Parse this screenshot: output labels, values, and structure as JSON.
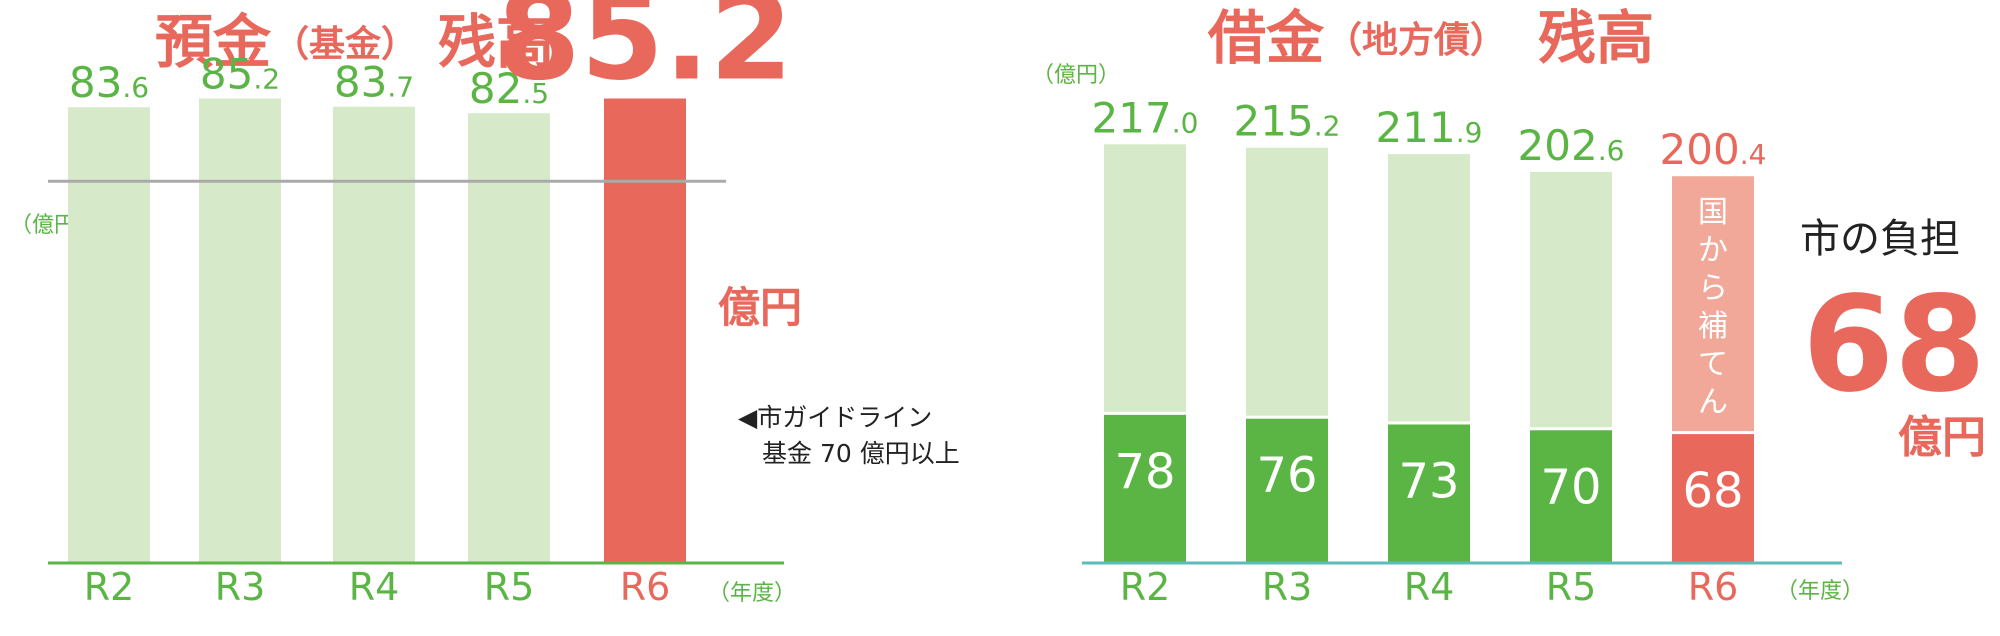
{
  "chart_data": [
    {
      "type": "bar",
      "title_main": "預金",
      "title_paren": "（基金）",
      "title_end": "残高",
      "ylabel": "（億円）",
      "xunit": "（年度）",
      "categories": [
        "R2",
        "R3",
        "R4",
        "R5",
        "R6"
      ],
      "values": [
        83.6,
        85.2,
        83.7,
        82.5,
        85.2
      ],
      "value_labels": [
        {
          "int": "83",
          "dec": ".6"
        },
        {
          "int": "85",
          "dec": ".2"
        },
        {
          "int": "83",
          "dec": ".7"
        },
        {
          "int": "82",
          "dec": ".5"
        },
        {
          "int": "85.2",
          "dec": ""
        }
      ],
      "highlight_unit": "億円",
      "ylim": [
        0,
        100
      ],
      "guideline": {
        "value": 70,
        "label_line1": "◀市ガイドライン",
        "label_line2": "基金 70 億円以上"
      },
      "colors": {
        "bar": "#d6eac9",
        "highlight": "#e8685c",
        "axis": "#5ab544",
        "guideline": "#aaaaaa"
      }
    },
    {
      "type": "stacked_bar",
      "title_main": "借金",
      "title_paren": "（地方債）",
      "title_end": "残高",
      "ylabel": "（億円）",
      "xunit": "（年度）",
      "categories": [
        "R2",
        "R3",
        "R4",
        "R5",
        "R6"
      ],
      "totals": [
        217.0,
        215.2,
        211.9,
        202.6,
        200.4
      ],
      "total_labels": [
        {
          "int": "217",
          "dec": ".0"
        },
        {
          "int": "215",
          "dec": ".2"
        },
        {
          "int": "211",
          "dec": ".9"
        },
        {
          "int": "202",
          "dec": ".6"
        },
        {
          "int": "200",
          "dec": ".4"
        }
      ],
      "city_burden": [
        78,
        76,
        73,
        70,
        68
      ],
      "city_burden_labels": [
        "78",
        "76",
        "73",
        "70",
        "68"
      ],
      "national_label": "国から補てん",
      "callout_label": "市の負担",
      "callout_value": "68",
      "callout_unit": "億円",
      "ylim": [
        0,
        240
      ],
      "colors": {
        "light": "#d6eac9",
        "dark": "#5ab544",
        "highlight_light": "#f2a898",
        "highlight_dark": "#e8685c",
        "axis": "#5bbcbc"
      }
    }
  ]
}
